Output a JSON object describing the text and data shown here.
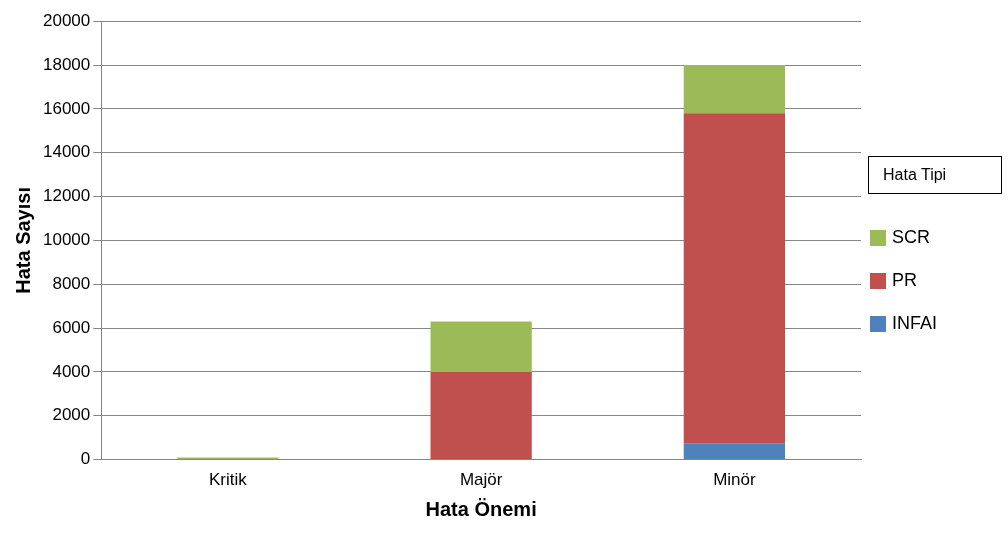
{
  "chart_data": {
    "type": "bar",
    "stacked": true,
    "xlabel": "Hata Önemi",
    "ylabel": "Hata Sayısı",
    "legend_title": "Hata Tipi",
    "legend": "right",
    "grid": "y",
    "categories": [
      "Kritik",
      "Majör",
      "Minör"
    ],
    "series": [
      {
        "name": "INFAI",
        "color": "#4f81bd",
        "values": [
          0,
          0,
          750
        ]
      },
      {
        "name": "PR",
        "color": "#c0504d",
        "values": [
          0,
          4000,
          15050
        ]
      },
      {
        "name": "SCR",
        "color": "#9bbb59",
        "values": [
          100,
          2300,
          2200
        ]
      }
    ],
    "ylim": [
      0,
      20000
    ],
    "yticks": [
      0,
      2000,
      4000,
      6000,
      8000,
      10000,
      12000,
      14000,
      16000,
      18000,
      20000
    ]
  }
}
